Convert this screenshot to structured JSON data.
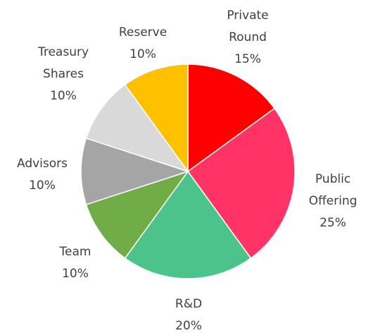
{
  "chart_data": {
    "type": "pie",
    "categories": [
      "Private Round",
      "Public Offering",
      "R&D",
      "Team",
      "Advisors",
      "Treasury Shares",
      "Reserve"
    ],
    "values": [
      15,
      25,
      20,
      10,
      10,
      10,
      10
    ],
    "value_labels": [
      "15%",
      "25%",
      "20%",
      "10%",
      "10%",
      "10%",
      "10%"
    ],
    "colors": [
      "#ff0000",
      "#ff3366",
      "#4cc38a",
      "#70ad47",
      "#a5a5a5",
      "#d9d9d9",
      "#ffc000"
    ]
  }
}
